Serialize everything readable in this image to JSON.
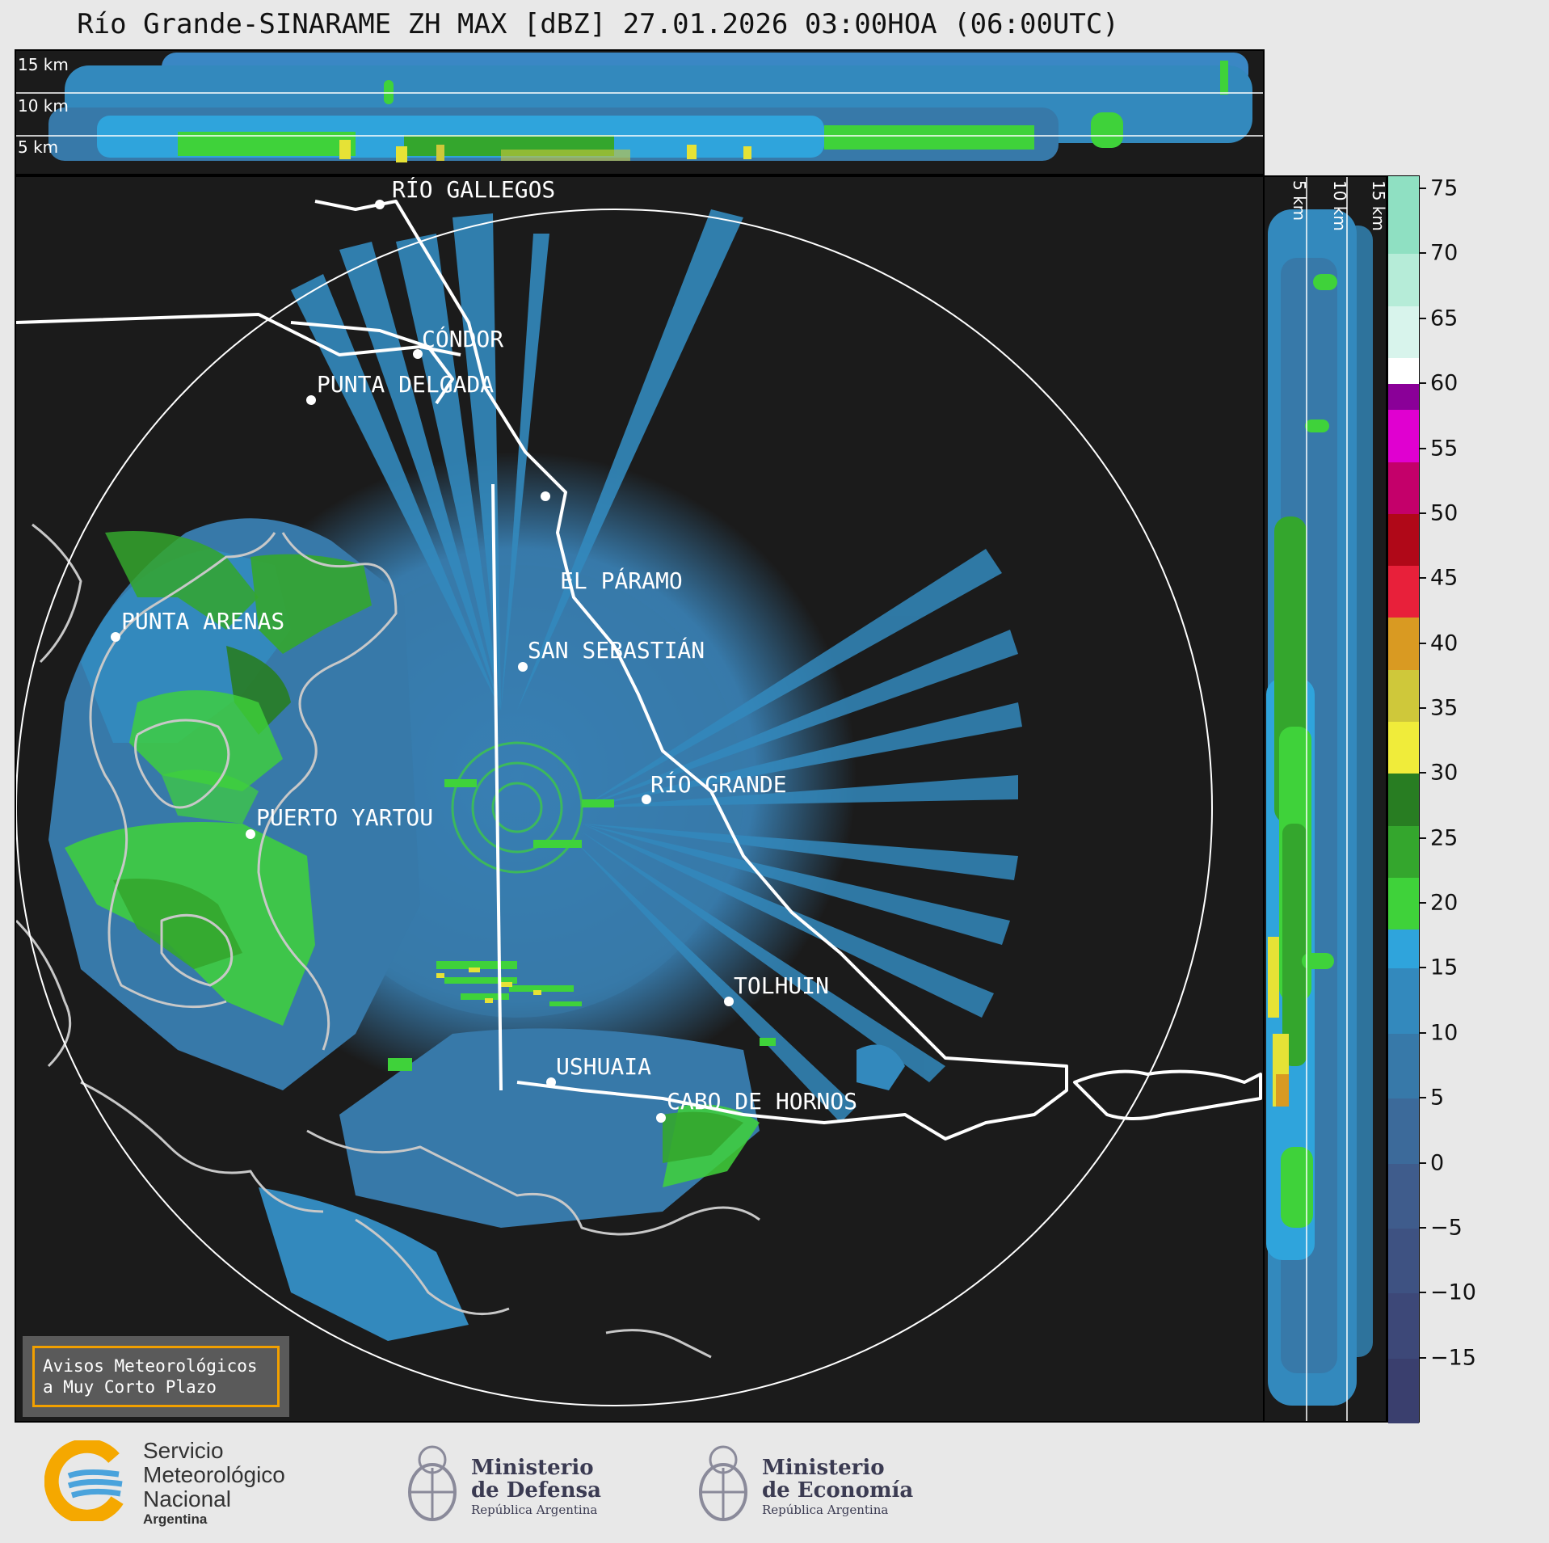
{
  "title": "Río Grande-SINARAME ZH MAX [dBZ] 27.01.2026 03:00HOA (06:00UTC)",
  "top_section": {
    "height_labels": [
      "15 km",
      "10 km",
      "5 km"
    ]
  },
  "right_section": {
    "height_labels": [
      "5 km",
      "10 km",
      "15 km"
    ]
  },
  "cities": [
    {
      "name": "RÍO GALLEGOS"
    },
    {
      "name": "CÓNDOR"
    },
    {
      "name": "PUNTA DELGADA"
    },
    {
      "name": "EL PÁRAMO"
    },
    {
      "name": "PUNTA ARENAS"
    },
    {
      "name": "SAN SEBASTIÁN"
    },
    {
      "name": "RÍO GRANDE"
    },
    {
      "name": "PUERTO YARTOU"
    },
    {
      "name": "TOLHUIN"
    },
    {
      "name": "USHUAIA"
    },
    {
      "name": "CABO DE HORNOS"
    }
  ],
  "colorbar": {
    "unit": "dBZ",
    "ticks": [
      "75",
      "70",
      "65",
      "60",
      "55",
      "50",
      "45",
      "40",
      "35",
      "30",
      "25",
      "20",
      "15",
      "10",
      "5",
      "0",
      "−5",
      "−10",
      "−15"
    ],
    "tick_values": [
      75,
      70,
      65,
      60,
      55,
      50,
      45,
      40,
      35,
      30,
      25,
      20,
      15,
      10,
      5,
      0,
      -5,
      -10,
      -15
    ],
    "range": [
      -20,
      76
    ],
    "bands": [
      {
        "from": -20,
        "to": -15,
        "color": "#3a3f6e"
      },
      {
        "from": -15,
        "to": -10,
        "color": "#3d4878"
      },
      {
        "from": -10,
        "to": -5,
        "color": "#3e5282"
      },
      {
        "from": -5,
        "to": 0,
        "color": "#3f5c8c"
      },
      {
        "from": 0,
        "to": 5,
        "color": "#3c6a9a"
      },
      {
        "from": 5,
        "to": 10,
        "color": "#3779a9"
      },
      {
        "from": 10,
        "to": 15,
        "color": "#3389bd"
      },
      {
        "from": 15,
        "to": 18,
        "color": "#2fa4dc"
      },
      {
        "from": 18,
        "to": 22,
        "color": "#3fd23a"
      },
      {
        "from": 22,
        "to": 26,
        "color": "#34a62d"
      },
      {
        "from": 26,
        "to": 30,
        "color": "#287d22"
      },
      {
        "from": 30,
        "to": 34,
        "color": "#f0ec3a"
      },
      {
        "from": 34,
        "to": 38,
        "color": "#cfc83a"
      },
      {
        "from": 38,
        "to": 42,
        "color": "#d99a22"
      },
      {
        "from": 42,
        "to": 46,
        "color": "#e8203a"
      },
      {
        "from": 46,
        "to": 50,
        "color": "#b00818"
      },
      {
        "from": 50,
        "to": 54,
        "color": "#c4006a"
      },
      {
        "from": 54,
        "to": 58,
        "color": "#e000d0"
      },
      {
        "from": 58,
        "to": 60,
        "color": "#8a0098"
      },
      {
        "from": 60,
        "to": 62,
        "color": "#ffffff"
      },
      {
        "from": 62,
        "to": 66,
        "color": "#d8f4ec"
      },
      {
        "from": 66,
        "to": 70,
        "color": "#b6ecd8"
      },
      {
        "from": 70,
        "to": 76,
        "color": "#8fe0c2"
      }
    ]
  },
  "warning_box": {
    "line1": "Avisos Meteorológicos",
    "line2": "a Muy Corto Plazo"
  },
  "logos": {
    "smn": {
      "line1": "Servicio",
      "line2": "Meteorológico",
      "line3": "Nacional",
      "line4": "Argentina"
    },
    "defensa": {
      "line1": "Ministerio",
      "line2": "de Defensa",
      "line3": "República Argentina"
    },
    "economia": {
      "line1": "Ministerio",
      "line2": "de Economía",
      "line3": "República Argentina"
    }
  },
  "colors": {
    "background": "#1b1b1b",
    "echo_light": "#3a87c4",
    "echo_dark": "#336fa3",
    "echo_green": "#3fd23a",
    "echo_yellow": "#e6e236",
    "coast": "#c8c8c8",
    "border": "#ffffff"
  }
}
